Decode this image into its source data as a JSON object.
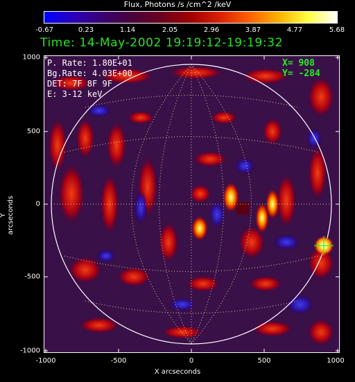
{
  "colorbar": {
    "title": "Flux, Photons /s /cm^2 /keV",
    "ticks": [
      "-0.67",
      "0.23",
      "1.14",
      "2.05",
      "2.96",
      "3.87",
      "4.77",
      "5.68"
    ]
  },
  "time_label": "Time: 14-May-2002 19:19:12-19:19:32",
  "info": {
    "p_rate": "P. Rate:  1.80E+01",
    "bg_rate": "Bg.Rate:  4.03E+00",
    "det": "DET: 7F 8F 9F",
    "energy": "E: 3-12 keV"
  },
  "cursor": {
    "x_label": "X=  908",
    "y_label": "Y= -284"
  },
  "axes": {
    "xlabel": "X arcseconds",
    "ylabel": "Y arcseconds",
    "xticks": [
      "-1000",
      "-500",
      "0",
      "500",
      "1000"
    ],
    "yticks": [
      "1000",
      "500",
      "0",
      "-500",
      "-1000"
    ],
    "range": [
      -1000,
      1000
    ]
  }
}
